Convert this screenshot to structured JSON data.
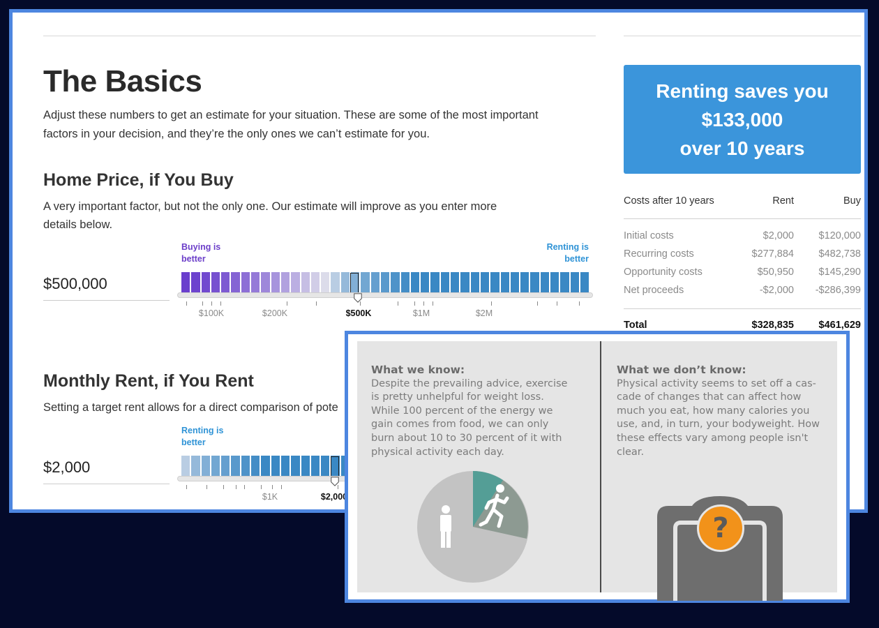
{
  "basics": {
    "title": "The Basics",
    "intro": "Adjust these numbers to get an estimate for your situation. These are some of the most important factors in your decision, and they’re the only ones we can’t estimate for you."
  },
  "home_price": {
    "heading": "Home Price, if You Buy",
    "description": "A very important factor, but not the only one. Our estimate will improve as you enter more details below.",
    "value": "$500,000",
    "left_label": "Buying is better",
    "right_label": "Renting is better",
    "ticks": [
      "$100K",
      "$200K",
      "$500K",
      "$1M",
      "$2M"
    ],
    "selected_tick": "$500K",
    "buy_color": "#6c3fc9",
    "rent_color": "#2f93d6"
  },
  "monthly_rent": {
    "heading": "Monthly Rent, if You Rent",
    "description": "Setting a target rent allows for a direct comparison of pote",
    "value": "$2,000",
    "left_label": "Renting is better",
    "ticks": [
      "$1K",
      "$2,000"
    ],
    "selected_tick": "$2,000"
  },
  "summary": {
    "line1": "Renting saves you",
    "line2": "$133,000",
    "line3": "over 10 years",
    "color": "#3b95db"
  },
  "costs_table": {
    "header": [
      "Costs after 10 years",
      "Rent",
      "Buy"
    ],
    "rows": [
      [
        "Initial costs",
        "$2,000",
        "$120,000"
      ],
      [
        "Recurring costs",
        "$277,884",
        "$482,738"
      ],
      [
        "Opportunity costs",
        "$50,950",
        "$145,290"
      ],
      [
        "Net proceeds",
        "-$2,000",
        "-$286,399"
      ]
    ],
    "total": [
      "Total",
      "$328,835",
      "$461,629"
    ]
  },
  "infographic": {
    "known_title": "What we know:",
    "known_text": [
      "Despite the prevailing advice, exercise",
      "is pretty unhelpful for weight loss.",
      "While 100 percent of the energy we",
      "gain comes from food, we can only",
      "burn about 10 to 30 percent of it with",
      "physical activity each day."
    ],
    "unknown_title": "What we don’t know:",
    "unknown_text": [
      "Physical activity seems to set off a cas-",
      "cade of changes that can affect how",
      "much you eat, how many calories you",
      "use, and, in turn, your bodyweight. How",
      "these effects vary among people isn't",
      "clear."
    ],
    "question_mark": "?",
    "pie_colors": {
      "rest": "#c3c3c3",
      "activity": "#8d9a92",
      "activity_edge": "#4e9f97"
    }
  }
}
